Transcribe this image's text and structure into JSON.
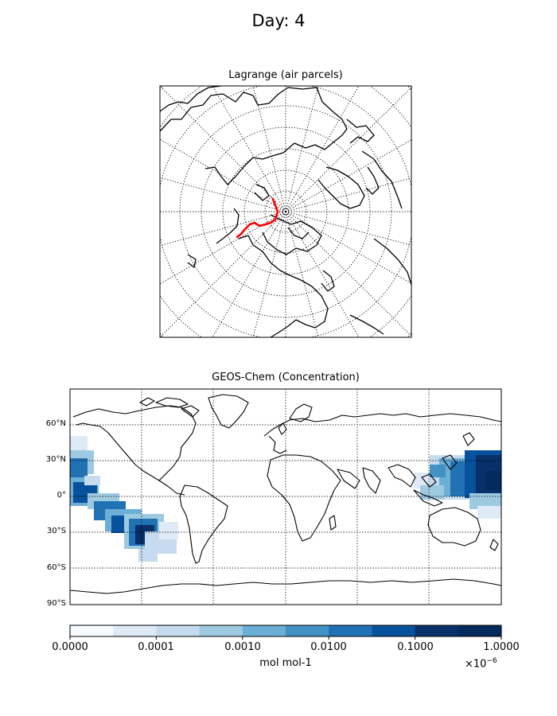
{
  "suptitle": "Day: 4",
  "polar_map": {
    "title": "Lagrange (air parcels)",
    "projection": "north-polar-stereographic",
    "trajectory_color": "#ff0000",
    "coastline_color": "#000000",
    "graticule": "dotted"
  },
  "world_map": {
    "title": "GEOS-Chem (Concentration)",
    "projection": "equirectangular",
    "lat_labels": [
      "60°N",
      "30°N",
      "0°",
      "30°S",
      "60°S",
      "90°S"
    ],
    "graticule": "dotted"
  },
  "colorbar": {
    "tick_labels": [
      "0.0000",
      "0.0001",
      "0.0010",
      "0.0100",
      "0.1000",
      "1.0000"
    ],
    "units": "mol mol-1",
    "offset_base": "×10",
    "offset_exp": "−6",
    "colors": [
      "#f7fbff",
      "#deebf7",
      "#c6dbef",
      "#9ecae1",
      "#6baed6",
      "#4292c6",
      "#2171b5",
      "#08519c",
      "#08306b",
      "#042a5e"
    ]
  }
}
